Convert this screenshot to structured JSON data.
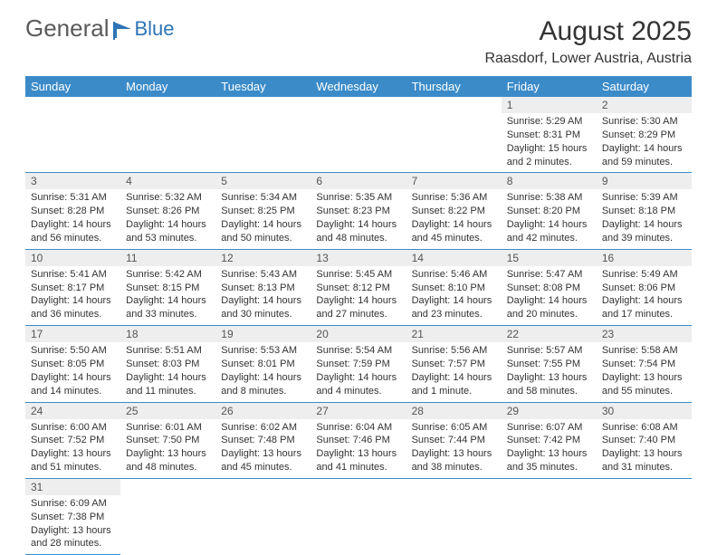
{
  "brand": {
    "name1": "General",
    "name2": "Blue"
  },
  "title": "August 2025",
  "location": "Raasdorf, Lower Austria, Austria",
  "headers": [
    "Sunday",
    "Monday",
    "Tuesday",
    "Wednesday",
    "Thursday",
    "Friday",
    "Saturday"
  ],
  "colors": {
    "headerBg": "#3b8bc9",
    "headerText": "#ffffff",
    "dayNumBg": "#eeeeee",
    "border": "#3b8bc9",
    "logoBlue": "#2e74b5",
    "logoGray": "#5a5a5a"
  },
  "weeks": [
    [
      null,
      null,
      null,
      null,
      null,
      {
        "n": "1",
        "sr": "Sunrise: 5:29 AM",
        "ss": "Sunset: 8:31 PM",
        "dl": "Daylight: 15 hours and 2 minutes."
      },
      {
        "n": "2",
        "sr": "Sunrise: 5:30 AM",
        "ss": "Sunset: 8:29 PM",
        "dl": "Daylight: 14 hours and 59 minutes."
      }
    ],
    [
      {
        "n": "3",
        "sr": "Sunrise: 5:31 AM",
        "ss": "Sunset: 8:28 PM",
        "dl": "Daylight: 14 hours and 56 minutes."
      },
      {
        "n": "4",
        "sr": "Sunrise: 5:32 AM",
        "ss": "Sunset: 8:26 PM",
        "dl": "Daylight: 14 hours and 53 minutes."
      },
      {
        "n": "5",
        "sr": "Sunrise: 5:34 AM",
        "ss": "Sunset: 8:25 PM",
        "dl": "Daylight: 14 hours and 50 minutes."
      },
      {
        "n": "6",
        "sr": "Sunrise: 5:35 AM",
        "ss": "Sunset: 8:23 PM",
        "dl": "Daylight: 14 hours and 48 minutes."
      },
      {
        "n": "7",
        "sr": "Sunrise: 5:36 AM",
        "ss": "Sunset: 8:22 PM",
        "dl": "Daylight: 14 hours and 45 minutes."
      },
      {
        "n": "8",
        "sr": "Sunrise: 5:38 AM",
        "ss": "Sunset: 8:20 PM",
        "dl": "Daylight: 14 hours and 42 minutes."
      },
      {
        "n": "9",
        "sr": "Sunrise: 5:39 AM",
        "ss": "Sunset: 8:18 PM",
        "dl": "Daylight: 14 hours and 39 minutes."
      }
    ],
    [
      {
        "n": "10",
        "sr": "Sunrise: 5:41 AM",
        "ss": "Sunset: 8:17 PM",
        "dl": "Daylight: 14 hours and 36 minutes."
      },
      {
        "n": "11",
        "sr": "Sunrise: 5:42 AM",
        "ss": "Sunset: 8:15 PM",
        "dl": "Daylight: 14 hours and 33 minutes."
      },
      {
        "n": "12",
        "sr": "Sunrise: 5:43 AM",
        "ss": "Sunset: 8:13 PM",
        "dl": "Daylight: 14 hours and 30 minutes."
      },
      {
        "n": "13",
        "sr": "Sunrise: 5:45 AM",
        "ss": "Sunset: 8:12 PM",
        "dl": "Daylight: 14 hours and 27 minutes."
      },
      {
        "n": "14",
        "sr": "Sunrise: 5:46 AM",
        "ss": "Sunset: 8:10 PM",
        "dl": "Daylight: 14 hours and 23 minutes."
      },
      {
        "n": "15",
        "sr": "Sunrise: 5:47 AM",
        "ss": "Sunset: 8:08 PM",
        "dl": "Daylight: 14 hours and 20 minutes."
      },
      {
        "n": "16",
        "sr": "Sunrise: 5:49 AM",
        "ss": "Sunset: 8:06 PM",
        "dl": "Daylight: 14 hours and 17 minutes."
      }
    ],
    [
      {
        "n": "17",
        "sr": "Sunrise: 5:50 AM",
        "ss": "Sunset: 8:05 PM",
        "dl": "Daylight: 14 hours and 14 minutes."
      },
      {
        "n": "18",
        "sr": "Sunrise: 5:51 AM",
        "ss": "Sunset: 8:03 PM",
        "dl": "Daylight: 14 hours and 11 minutes."
      },
      {
        "n": "19",
        "sr": "Sunrise: 5:53 AM",
        "ss": "Sunset: 8:01 PM",
        "dl": "Daylight: 14 hours and 8 minutes."
      },
      {
        "n": "20",
        "sr": "Sunrise: 5:54 AM",
        "ss": "Sunset: 7:59 PM",
        "dl": "Daylight: 14 hours and 4 minutes."
      },
      {
        "n": "21",
        "sr": "Sunrise: 5:56 AM",
        "ss": "Sunset: 7:57 PM",
        "dl": "Daylight: 14 hours and 1 minute."
      },
      {
        "n": "22",
        "sr": "Sunrise: 5:57 AM",
        "ss": "Sunset: 7:55 PM",
        "dl": "Daylight: 13 hours and 58 minutes."
      },
      {
        "n": "23",
        "sr": "Sunrise: 5:58 AM",
        "ss": "Sunset: 7:54 PM",
        "dl": "Daylight: 13 hours and 55 minutes."
      }
    ],
    [
      {
        "n": "24",
        "sr": "Sunrise: 6:00 AM",
        "ss": "Sunset: 7:52 PM",
        "dl": "Daylight: 13 hours and 51 minutes."
      },
      {
        "n": "25",
        "sr": "Sunrise: 6:01 AM",
        "ss": "Sunset: 7:50 PM",
        "dl": "Daylight: 13 hours and 48 minutes."
      },
      {
        "n": "26",
        "sr": "Sunrise: 6:02 AM",
        "ss": "Sunset: 7:48 PM",
        "dl": "Daylight: 13 hours and 45 minutes."
      },
      {
        "n": "27",
        "sr": "Sunrise: 6:04 AM",
        "ss": "Sunset: 7:46 PM",
        "dl": "Daylight: 13 hours and 41 minutes."
      },
      {
        "n": "28",
        "sr": "Sunrise: 6:05 AM",
        "ss": "Sunset: 7:44 PM",
        "dl": "Daylight: 13 hours and 38 minutes."
      },
      {
        "n": "29",
        "sr": "Sunrise: 6:07 AM",
        "ss": "Sunset: 7:42 PM",
        "dl": "Daylight: 13 hours and 35 minutes."
      },
      {
        "n": "30",
        "sr": "Sunrise: 6:08 AM",
        "ss": "Sunset: 7:40 PM",
        "dl": "Daylight: 13 hours and 31 minutes."
      }
    ],
    [
      {
        "n": "31",
        "sr": "Sunrise: 6:09 AM",
        "ss": "Sunset: 7:38 PM",
        "dl": "Daylight: 13 hours and 28 minutes."
      },
      null,
      null,
      null,
      null,
      null,
      null
    ]
  ]
}
